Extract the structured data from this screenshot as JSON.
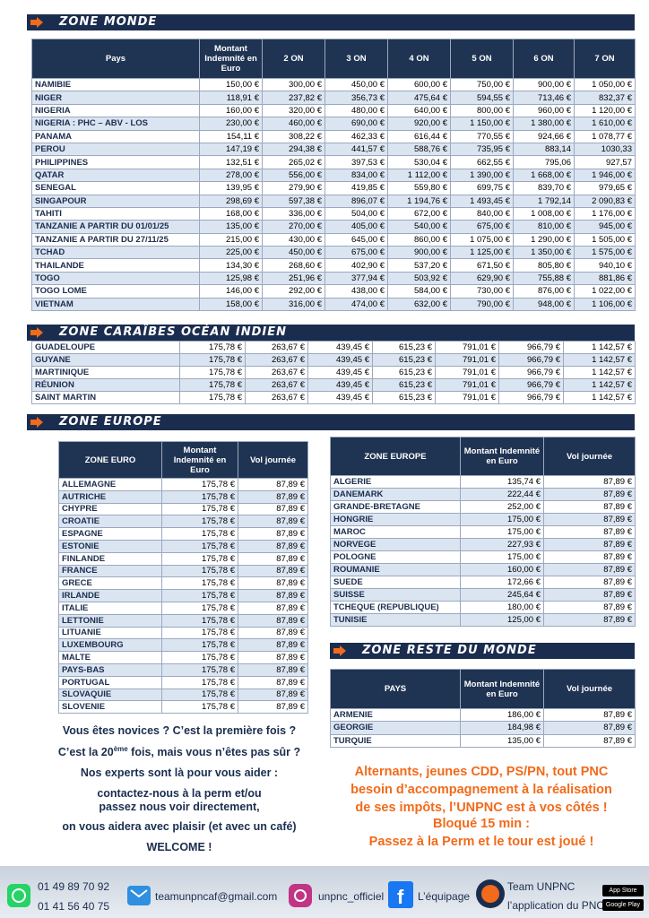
{
  "zone_monde": {
    "title": "ZONE MONDE",
    "header": [
      "Pays",
      "Montant Indemnité en Euro",
      "2 ON",
      "3 ON",
      "4 ON",
      "5 ON",
      "6 ON",
      "7 ON"
    ],
    "rows": [
      [
        "NAMIBIE",
        "150,00 €",
        "300,00 €",
        "450,00 €",
        "600,00 €",
        "750,00 €",
        "900,00 €",
        "1 050,00 €"
      ],
      [
        "NIGER",
        "118,91 €",
        "237,82 €",
        "356,73 €",
        "475,64 €",
        "594,55 €",
        "713,46 €",
        "832,37 €"
      ],
      [
        "NIGERIA",
        "160,00 €",
        "320,00 €",
        "480,00 €",
        "640,00 €",
        "800,00 €",
        "960,00 €",
        "1 120,00 €"
      ],
      [
        "NIGERIA : PHC – ABV - LOS",
        "230,00 €",
        "460,00 €",
        "690,00 €",
        "920,00 €",
        "1 150,00 €",
        "1 380,00 €",
        "1 610,00 €"
      ],
      [
        "PANAMA",
        "154,11 €",
        "308,22 €",
        "462,33 €",
        "616,44 €",
        "770,55 €",
        "924,66 €",
        "1 078,77 €"
      ],
      [
        "PEROU",
        "147,19 €",
        "294,38 €",
        "441,57 €",
        "588,76 €",
        "735,95 €",
        "883,14",
        "1030,33"
      ],
      [
        "PHILIPPINES",
        "132,51 €",
        "265,02 €",
        "397,53 €",
        "530,04 €",
        "662,55 €",
        "795,06",
        "927,57"
      ],
      [
        "QATAR",
        "278,00 €",
        "556,00 €",
        "834,00 €",
        "1 112,00 €",
        "1 390,00 €",
        "1 668,00 €",
        "1 946,00 €"
      ],
      [
        "SENEGAL",
        "139,95 €",
        "279,90 €",
        "419,85 €",
        "559,80 €",
        "699,75 €",
        "839,70 €",
        "979,65 €"
      ],
      [
        "SINGAPOUR",
        "298,69 €",
        "597,38 €",
        "896,07 €",
        "1 194,76 €",
        "1 493,45 €",
        "1 792,14",
        "2 090,83 €"
      ],
      [
        "TAHITI",
        "168,00 €",
        "336,00 €",
        "504,00 €",
        "672,00 €",
        "840,00 €",
        "1 008,00 €",
        "1 176,00 €"
      ],
      [
        "TANZANIE A PARTIR DU 01/01/25",
        "135,00 €",
        "270,00 €",
        "405,00 €",
        "540,00 €",
        "675,00 €",
        "810,00 €",
        "945,00 €"
      ],
      [
        "TANZANIE A PARTIR DU 27/11/25",
        "215,00 €",
        "430,00 €",
        "645,00 €",
        "860,00 €",
        "1 075,00 €",
        "1 290,00 €",
        "1 505,00 €"
      ],
      [
        "TCHAD",
        "225,00 €",
        "450,00 €",
        "675,00 €",
        "900,00 €",
        "1 125,00 €",
        "1 350,00 €",
        "1 575,00 €"
      ],
      [
        "THAILANDE",
        "134,30 €",
        "268,60 €",
        "402,90 €",
        "537,20 €",
        "671,50 €",
        "805,80 €",
        "940,10 €"
      ],
      [
        "TOGO",
        "125,98 €",
        "251,96 €",
        "377,94 €",
        "503,92 €",
        "629,90 €",
        "755,88 €",
        "881,86 €"
      ],
      [
        "TOGO LOME",
        "146,00 €",
        "292,00 €",
        "438,00 €",
        "584,00 €",
        "730,00 €",
        "876,00 €",
        "1 022,00 €"
      ],
      [
        "VIETNAM",
        "158,00 €",
        "316,00 €",
        "474,00 €",
        "632,00 €",
        "790,00 €",
        "948,00 €",
        "1 106,00 €"
      ]
    ]
  },
  "zone_caraibes": {
    "title": "ZONE CARAÏBES OCÉAN INDIEN",
    "rows": [
      [
        "GUADELOUPE",
        "175,78 €",
        "263,67 €",
        "439,45 €",
        "615,23 €",
        "791,01 €",
        "966,79 €",
        "1 142,57 €"
      ],
      [
        "GUYANE",
        "175,78 €",
        "263,67 €",
        "439,45 €",
        "615,23 €",
        "791,01 €",
        "966,79 €",
        "1 142,57 €"
      ],
      [
        "MARTINIQUE",
        "175,78 €",
        "263,67 €",
        "439,45 €",
        "615,23 €",
        "791,01 €",
        "966,79 €",
        "1 142,57 €"
      ],
      [
        "RÉUNION",
        "175,78 €",
        "263,67 €",
        "439,45 €",
        "615,23 €",
        "791,01 €",
        "966,79 €",
        "1 142,57 €"
      ],
      [
        "SAINT MARTIN",
        "175,78 €",
        "263,67 €",
        "439,45 €",
        "615,23 €",
        "791,01 €",
        "966,79 €",
        "1 142,57 €"
      ]
    ]
  },
  "zone_europe": {
    "title": "ZONE EUROPE",
    "euro_table": {
      "header": [
        "ZONE EURO",
        "Montant Indemnité en Euro",
        "Vol journée"
      ],
      "rows": [
        [
          "ALLEMAGNE",
          "175,78 €",
          "87,89 €"
        ],
        [
          "AUTRICHE",
          "175,78 €",
          "87,89 €"
        ],
        [
          "CHYPRE",
          "175,78 €",
          "87,89 €"
        ],
        [
          "CROATIE",
          "175,78 €",
          "87,89 €"
        ],
        [
          "ESPAGNE",
          "175,78 €",
          "87,89 €"
        ],
        [
          "ESTONIE",
          "175,78 €",
          "87,89 €"
        ],
        [
          "FINLANDE",
          "175,78 €",
          "87,89 €"
        ],
        [
          "FRANCE",
          "175,78 €",
          "87,89 €"
        ],
        [
          "GRECE",
          "175,78 €",
          "87,89 €"
        ],
        [
          "IRLANDE",
          "175,78 €",
          "87,89 €"
        ],
        [
          "ITALIE",
          "175,78 €",
          "87,89 €"
        ],
        [
          "LETTONIE",
          "175,78 €",
          "87,89 €"
        ],
        [
          "LITUANIE",
          "175,78 €",
          "87,89 €"
        ],
        [
          "LUXEMBOURG",
          "175,78 €",
          "87,89 €"
        ],
        [
          "MALTE",
          "175,78 €",
          "87,89 €"
        ],
        [
          "PAYS-BAS",
          "175,78 €",
          "87,89 €"
        ],
        [
          "PORTUGAL",
          "175,78 €",
          "87,89 €"
        ],
        [
          "SLOVAQUIE",
          "175,78 €",
          "87,89 €"
        ],
        [
          "SLOVENIE",
          "175,78 €",
          "87,89 €"
        ]
      ]
    },
    "europe_table": {
      "header": [
        "ZONE EUROPE",
        "Montant Indemnité en Euro",
        "Vol journée"
      ],
      "rows": [
        [
          "ALGERIE",
          "135,74 €",
          "87,89 €"
        ],
        [
          "DANEMARK",
          "222,44 €",
          "87,89 €"
        ],
        [
          "GRANDE-BRETAGNE",
          "252,00 €",
          "87,89 €"
        ],
        [
          "HONGRIE",
          "175,00 €",
          "87,89 €"
        ],
        [
          "MAROC",
          "175,00 €",
          "87,89 €"
        ],
        [
          "NORVEGE",
          "227,93 €",
          "87,89 €"
        ],
        [
          "POLOGNE",
          "175,00 €",
          "87,89 €"
        ],
        [
          "ROUMANIE",
          "160,00 €",
          "87,89 €"
        ],
        [
          "SUEDE",
          "172,66 €",
          "87,89 €"
        ],
        [
          "SUISSE",
          "245,64 €",
          "87,89 €"
        ],
        [
          "TCHEQUE (REPUBLIQUE)",
          "180,00 €",
          "87,89 €"
        ],
        [
          "TUNISIE",
          "125,00 €",
          "87,89 €"
        ]
      ]
    }
  },
  "zone_reste_du_monde": {
    "title": "ZONE RESTE DU MONDE",
    "header": [
      "PAYS",
      "Montant Indemnité en Euro",
      "Vol journée"
    ],
    "rows": [
      [
        "ARMENIE",
        "186,00 €",
        "87,89 €"
      ],
      [
        "GEORGIE",
        "184,98 €",
        "87,89 €"
      ],
      [
        "TURQUIE",
        "135,00 €",
        "87,89 €"
      ]
    ]
  },
  "help_text": {
    "line1": "Vous êtes novices ? C’est la première fois ?",
    "line2_start": "C’est la 20",
    "line2_sup": "ème",
    "line2_end": " fois, mais vous n’êtes pas sûr ?",
    "line3": "Nos experts sont là pour vous aider :",
    "line4": "contactez-nous à la perm et/ou",
    "line5": "passez nous voir directement,",
    "line6": "on vous aidera avec plaisir (et avec un café)",
    "line7": "WELCOME !"
  },
  "promo_text": [
    "Alternants, jeunes CDD, PS/PN, tout PNC",
    "besoin d’accompagnement à la réalisation",
    "de ses impôts, l’UNPNC est à vos côtés !",
    "Bloqué 15 min :",
    "Passez à la Perm et le tour est joué !"
  ],
  "footer": {
    "phone1": "01 49 89 70 92",
    "phone2": "01 41 56 40 75",
    "email": "teamunpncaf@gmail.com",
    "instagram": "unpnc_officiel",
    "facebook": "L’équipage",
    "app_title": "Team UNPNC",
    "app_subtitle": "l’application du PNC",
    "app_store": "App Store",
    "google_play": "Google Play"
  }
}
